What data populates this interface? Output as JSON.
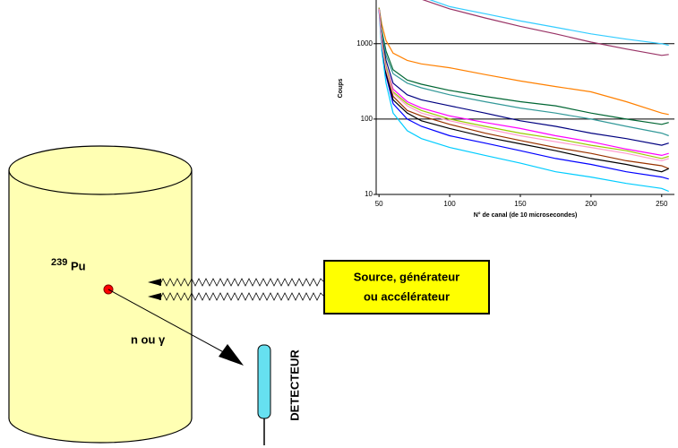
{
  "diagram": {
    "isotope_mass": "239",
    "isotope": "Pu",
    "source_label": [
      "Source, générateur",
      "ou accélérateur"
    ],
    "particle_label": "n ou γ",
    "detector_label": "DETECTEUR"
  },
  "chart_data": {
    "type": "line",
    "log_scale": true,
    "grid": true,
    "x_label": "N° de canal (de 10 microsecondes)",
    "y_label": "Coups",
    "xlim": [
      48,
      259
    ],
    "xticks": [
      50,
      100,
      150,
      200,
      250
    ],
    "ylim": [
      10,
      3800
    ],
    "yticks": [
      10,
      100,
      1000
    ],
    "x": [
      50,
      52,
      55,
      60,
      70,
      80,
      100,
      125,
      150,
      175,
      200,
      225,
      250,
      255
    ],
    "series": [
      {
        "color": "#33ccff",
        "values": [
          null,
          null,
          null,
          null,
          null,
          4200,
          3100,
          2500,
          2000,
          1650,
          1350,
          1150,
          1000,
          950
        ]
      },
      {
        "color": "#993366",
        "values": [
          null,
          null,
          null,
          null,
          null,
          3900,
          2900,
          2200,
          1700,
          1350,
          1050,
          850,
          700,
          720
        ]
      },
      {
        "color": "#ff8000",
        "values": [
          3000,
          1800,
          1100,
          750,
          600,
          540,
          480,
          390,
          320,
          270,
          230,
          170,
          120,
          115
        ]
      },
      {
        "color": "#006633",
        "values": [
          3000,
          1500,
          800,
          450,
          330,
          290,
          240,
          200,
          170,
          150,
          120,
          100,
          85,
          90
        ]
      },
      {
        "color": "#339999",
        "values": [
          3000,
          1400,
          700,
          400,
          300,
          260,
          210,
          170,
          140,
          120,
          100,
          80,
          65,
          60
        ]
      },
      {
        "color": "#000080",
        "values": [
          3000,
          1200,
          600,
          300,
          210,
          180,
          150,
          120,
          95,
          80,
          65,
          55,
          45,
          48
        ]
      },
      {
        "color": "#ff00ff",
        "values": [
          3000,
          1100,
          500,
          250,
          170,
          140,
          110,
          90,
          75,
          60,
          50,
          40,
          33,
          35
        ]
      },
      {
        "color": "#99cc00",
        "values": [
          3000,
          1100,
          500,
          230,
          160,
          130,
          100,
          80,
          65,
          55,
          45,
          38,
          30,
          32
        ]
      },
      {
        "color": "#993300",
        "values": [
          2900,
          1000,
          450,
          200,
          130,
          110,
          85,
          65,
          52,
          42,
          35,
          28,
          24,
          22
        ]
      },
      {
        "color": "#0000ff",
        "values": [
          2800,
          900,
          380,
          160,
          100,
          80,
          60,
          48,
          38,
          30,
          25,
          20,
          17,
          16
        ]
      },
      {
        "color": "#00ccff",
        "values": [
          2700,
          800,
          300,
          120,
          70,
          55,
          42,
          33,
          26,
          20,
          17,
          14,
          12,
          11
        ]
      },
      {
        "color": "#000000",
        "values": [
          2900,
          1000,
          400,
          180,
          120,
          95,
          75,
          58,
          47,
          38,
          30,
          25,
          20,
          22
        ]
      },
      {
        "color": "#ff99cc",
        "values": [
          2900,
          1000,
          450,
          220,
          150,
          120,
          95,
          75,
          60,
          50,
          42,
          35,
          28,
          30
        ]
      }
    ]
  }
}
